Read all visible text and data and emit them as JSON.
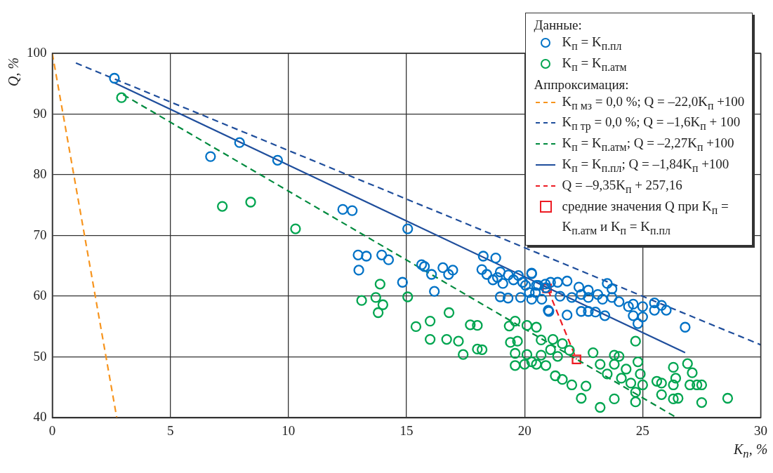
{
  "chart_data": {
    "type": "scatter",
    "xlabel": "K$_{п}$, %",
    "ylabel": "Q, %",
    "legend_title": "Данные:",
    "annotations": [
      "Аппроксимация:"
    ],
    "xlim": [
      0,
      30
    ],
    "ylim": [
      40,
      100
    ],
    "xticks": [
      0,
      5,
      10,
      15,
      20,
      25,
      30
    ],
    "yticks": [
      40,
      50,
      60,
      70,
      80,
      90,
      100
    ],
    "grid": true,
    "legend": "top right",
    "series": [
      {
        "name": "K$_{п}$ = K$_{п.пл}$",
        "type": "scatter",
        "marker": "circle",
        "color": "#0072c6",
        "x": [
          2.63,
          6.7,
          7.93,
          9.54,
          12.3,
          12.7,
          15.05,
          12.95,
          13.3,
          13.95,
          14.24,
          12.98,
          14.83,
          15.64,
          15.76,
          16.06,
          16.18,
          16.54,
          16.78,
          16.96,
          18.25,
          18.78,
          18.19,
          18.4,
          18.66,
          18.85,
          18.97,
          19.08,
          18.97,
          19.3,
          19.31,
          19.53,
          19.74,
          19.92,
          20.04,
          19.83,
          20.2,
          20.3,
          20.46,
          20.58,
          20.73,
          20.88,
          21.03,
          20.5,
          21.1,
          21.4,
          21.8,
          22.3,
          22.7,
          21.5,
          22.0,
          22.4,
          22.7,
          23.1,
          23.3,
          23.5,
          23.7,
          23.7,
          24.0,
          21.0,
          21.8,
          22.4,
          22.7,
          23.0,
          23.4,
          24.4,
          24.6,
          25.0,
          24.6,
          24.8,
          25.0,
          25.5,
          25.8,
          25.5,
          26.0,
          26.8,
          20.3,
          20.9,
          20.3
        ],
        "values": [
          95.9,
          83.0,
          85.3,
          82.4,
          74.3,
          74.1,
          71.1,
          66.8,
          66.6,
          66.8,
          66.0,
          64.3,
          62.3,
          65.2,
          64.9,
          63.6,
          60.8,
          64.7,
          63.6,
          64.3,
          66.6,
          66.3,
          64.4,
          63.6,
          62.7,
          63.1,
          64.0,
          62.1,
          59.9,
          59.7,
          63.5,
          62.7,
          63.4,
          62.3,
          61.8,
          59.8,
          60.6,
          63.8,
          60.6,
          61.8,
          59.5,
          62.0,
          57.5,
          61.8,
          62.3,
          62.3,
          62.5,
          61.5,
          61.0,
          60.0,
          59.8,
          60.3,
          59.8,
          60.3,
          59.5,
          62.1,
          61.2,
          59.8,
          59.1,
          57.7,
          56.9,
          57.5,
          57.5,
          57.4,
          56.8,
          58.3,
          58.7,
          58.3,
          56.8,
          55.5,
          56.6,
          58.9,
          58.5,
          57.7,
          57.7,
          54.9,
          63.7,
          61.4,
          59.5
        ]
      },
      {
        "name": "K$_{п}$ = K$_{п.атм}$",
        "type": "scatter",
        "marker": "circle",
        "color": "#00a550",
        "x": [
          2.93,
          7.2,
          8.4,
          10.3,
          13.1,
          13.7,
          13.88,
          13.8,
          14.0,
          15.05,
          15.4,
          16.0,
          16.8,
          16.0,
          16.7,
          17.2,
          17.4,
          17.7,
          18.0,
          18.0,
          18.2,
          19.35,
          19.6,
          20.1,
          19.4,
          19.7,
          19.6,
          20.1,
          19.6,
          20.0,
          20.3,
          20.7,
          21.2,
          21.6,
          21.1,
          21.9,
          21.4,
          20.7,
          20.5,
          20.9,
          21.3,
          21.6,
          22.0,
          22.4,
          22.6,
          22.9,
          23.2,
          23.5,
          23.2,
          23.8,
          24.0,
          23.8,
          23.8,
          24.3,
          24.1,
          24.5,
          24.7,
          24.8,
          24.9,
          25.0,
          24.7,
          24.7,
          25.6,
          25.8,
          25.8,
          26.3,
          26.4,
          26.3,
          26.5,
          26.3,
          26.9,
          27.1,
          27.0,
          27.3,
          27.5,
          27.5,
          28.6,
          20.5
        ],
        "values": [
          92.7,
          74.8,
          75.5,
          71.1,
          59.3,
          59.8,
          62.0,
          57.3,
          58.6,
          59.9,
          55.0,
          55.9,
          57.3,
          52.9,
          52.9,
          52.6,
          50.4,
          55.3,
          55.2,
          51.3,
          51.2,
          55.1,
          55.9,
          55.2,
          52.4,
          52.6,
          50.6,
          50.4,
          48.6,
          48.8,
          49.2,
          52.8,
          52.9,
          52.2,
          51.2,
          51.1,
          50.1,
          50.3,
          48.8,
          48.6,
          46.9,
          46.3,
          45.4,
          43.2,
          45.2,
          50.7,
          48.8,
          47.2,
          41.7,
          50.3,
          50.1,
          43.1,
          48.8,
          48.0,
          46.5,
          45.7,
          52.6,
          49.2,
          47.2,
          45.4,
          42.6,
          44.2,
          46.0,
          45.7,
          43.8,
          48.3,
          46.5,
          45.4,
          43.2,
          43.1,
          48.9,
          47.4,
          45.4,
          45.4,
          45.4,
          42.5,
          43.2,
          54.9
        ]
      },
      {
        "name": "K$_{п мз}$ = 0,0 %; Q = –22,0K$_{п}$ +100",
        "type": "line",
        "marker": "none",
        "line_style": "dashed",
        "color": "#f7941d",
        "x": [
          0,
          2.73
        ],
        "values": [
          100,
          40
        ]
      },
      {
        "name": "K$_{п тр}$ = 0,0 %; Q = –1,6K$_{п}$ + 100",
        "type": "line",
        "marker": "none",
        "line_style": "dashed",
        "color": "#1f4e9c",
        "x": [
          1,
          30
        ],
        "values": [
          98.4,
          52
        ]
      },
      {
        "name": "K$_{п}$ = K$_{п.атм}$; Q = –2,27K$_{п}$ +100",
        "type": "line",
        "marker": "none",
        "line_style": "dashed",
        "color": "#008a3e",
        "x": [
          3,
          26.4
        ],
        "values": [
          93.2,
          40.1
        ]
      },
      {
        "name": "K$_{п}$ = K$_{п.пл}$; Q = –1,84K$_{п}$ +100",
        "type": "line",
        "marker": "none",
        "line_style": "solid",
        "color": "#1f4e9c",
        "x": [
          2.6,
          26.8
        ],
        "values": [
          95.2,
          50.7
        ]
      },
      {
        "name": "Q = –9,35K$_{п}$ + 257,16",
        "type": "line",
        "marker": "none",
        "line_style": "dashed",
        "color": "#ed1c24",
        "x": [
          21.0,
          22.2
        ],
        "values": [
          61.0,
          49.6
        ]
      },
      {
        "name": "средние значения Q при K$_{п}$ = K$_{п.атм}$ и K$_{п}$ = K$_{п.пл}$",
        "type": "scatter",
        "marker": "square",
        "color": "#ed1c24",
        "x": [
          20.95,
          22.2
        ],
        "values": [
          61.3,
          49.6
        ]
      }
    ]
  }
}
